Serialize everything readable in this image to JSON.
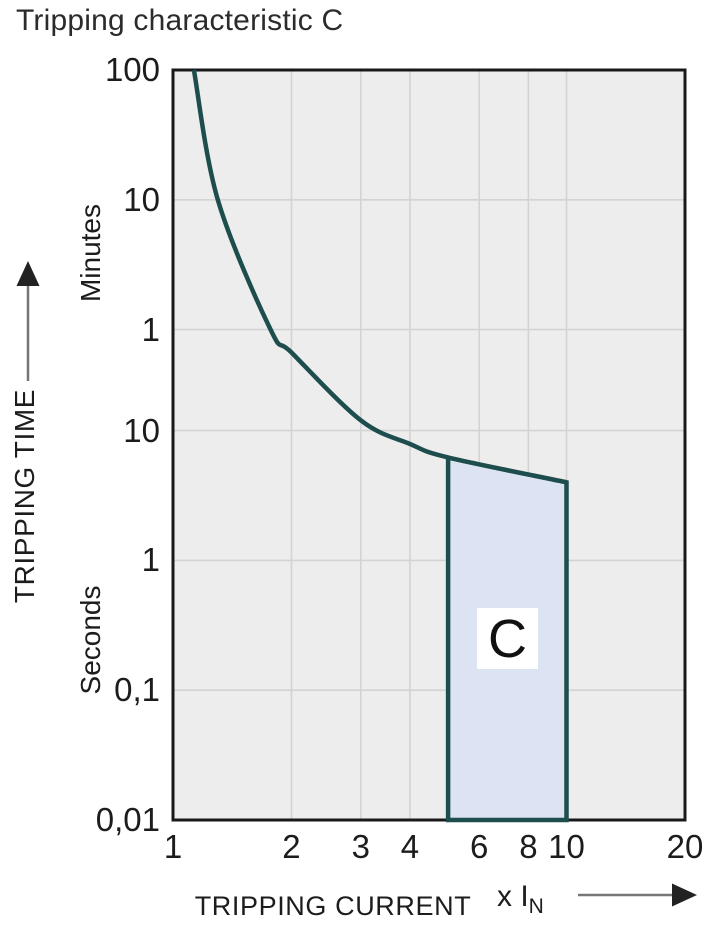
{
  "title": "Tripping characteristic C",
  "y_axis": {
    "label": "TRIPPING TIME",
    "unit_upper": "Minutes",
    "unit_lower": "Seconds",
    "ticks": [
      {
        "label": "100",
        "t": 6000
      },
      {
        "label": "10",
        "t": 600
      },
      {
        "label": "1",
        "t": 60
      },
      {
        "label": "10",
        "t": 10
      },
      {
        "label": "1",
        "t": 1
      },
      {
        "label": "0,1",
        "t": 0.1
      },
      {
        "label": "0,01",
        "t": 0.01
      }
    ]
  },
  "x_axis": {
    "label": "TRIPPING CURRENT",
    "unit": "x I",
    "unit_sub": "N",
    "ticks": [
      {
        "label": "1",
        "v": 1
      },
      {
        "label": "2",
        "v": 2
      },
      {
        "label": "3",
        "v": 3
      },
      {
        "label": "4",
        "v": 4
      },
      {
        "label": "6",
        "v": 6
      },
      {
        "label": "8",
        "v": 8
      },
      {
        "label": "10",
        "v": 10
      },
      {
        "label": "20",
        "v": 20
      }
    ]
  },
  "chart_data": {
    "type": "line",
    "title": "Tripping characteristic C",
    "xlabel": "TRIPPING CURRENT (x In)",
    "ylabel": "TRIPPING TIME (minutes / seconds)",
    "x_scale": "log",
    "y_scale": "log",
    "x_range": [
      1,
      20
    ],
    "y_range_seconds": [
      0.01,
      6000
    ],
    "grid": true,
    "gridlines_x": [
      2,
      3,
      4,
      6,
      8,
      10
    ],
    "gridlines_t_seconds": [
      600,
      60,
      10,
      1,
      0.1
    ],
    "curve_points_x_vs_seconds": [
      [
        1.13,
        6000
      ],
      [
        1.3,
        600
      ],
      [
        1.77,
        60
      ],
      [
        2.0,
        40
      ],
      [
        3.0,
        12
      ],
      [
        4.0,
        7.9
      ],
      [
        5.0,
        6.2
      ],
      [
        10.0,
        4.0
      ]
    ],
    "trip_region": {
      "label": "C",
      "x_from": 5,
      "x_to": 10,
      "t_top_at_x_from": 6.2,
      "t_top_at_x_to": 4.0,
      "t_bottom": 0.01
    },
    "colors": {
      "curve": "#1e4d4d",
      "region_fill": "#dce3f2",
      "plot_bg": "#ededed",
      "grid": "#d3d3d3",
      "border": "#191919",
      "arrow": "#222222"
    }
  }
}
